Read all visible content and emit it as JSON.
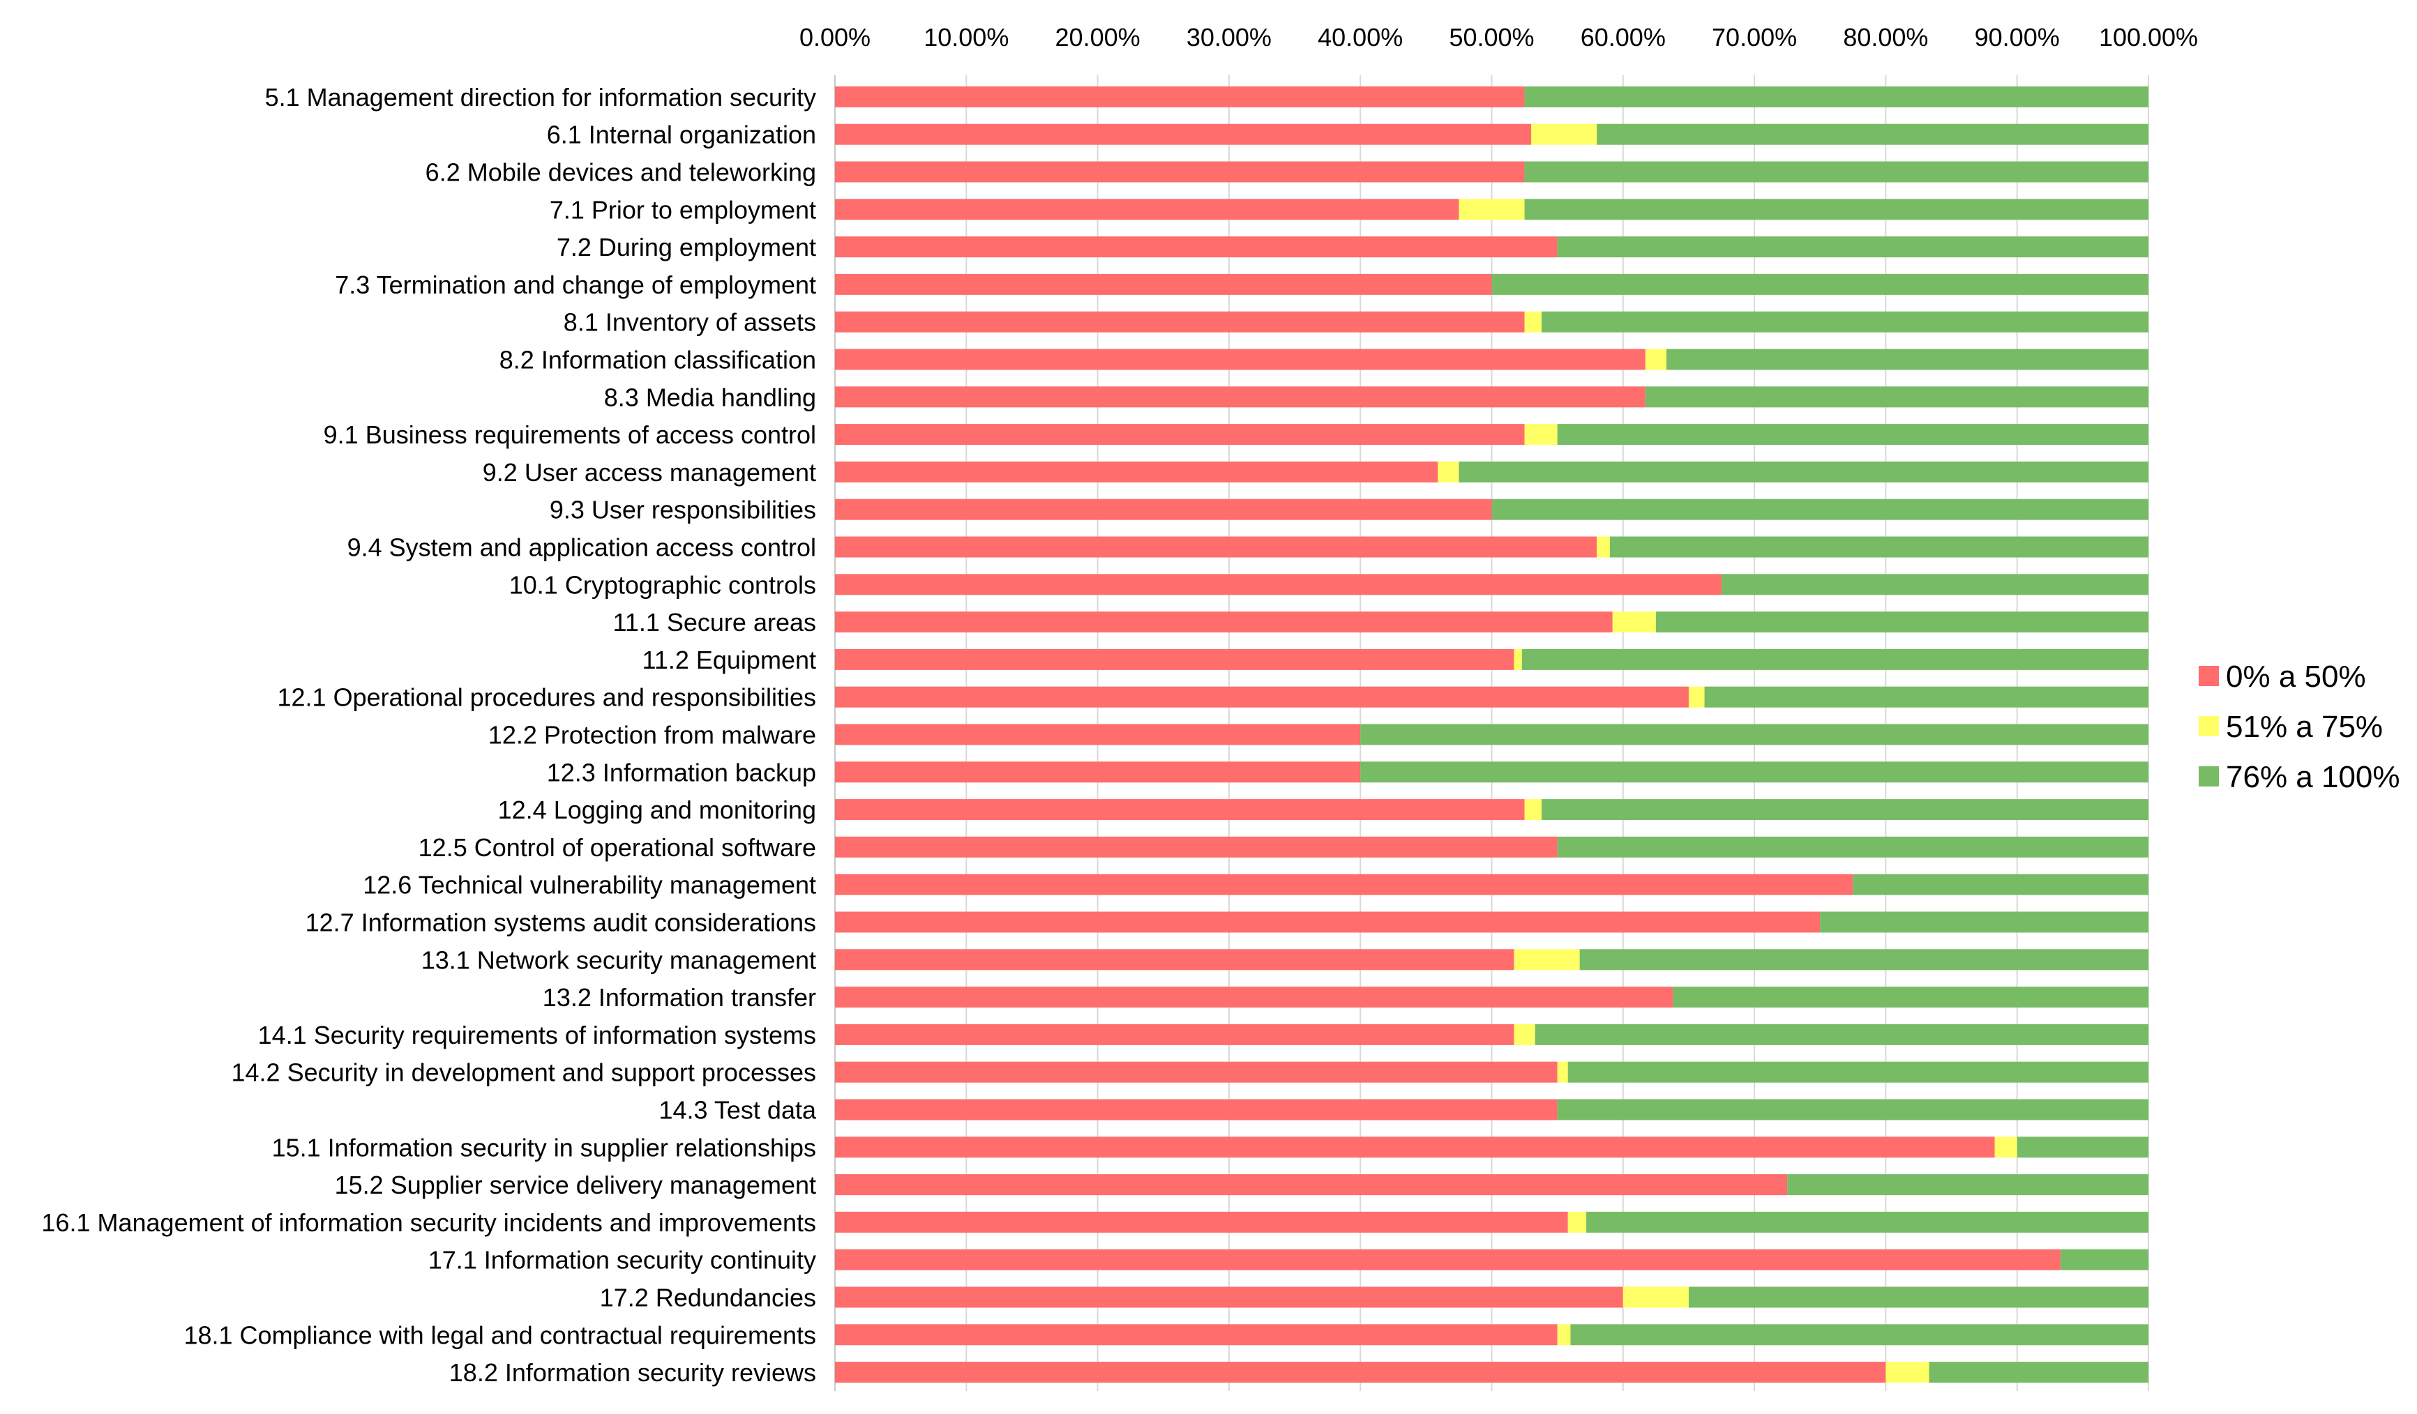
{
  "chart_data": {
    "type": "bar",
    "orientation": "horizontal",
    "stacked": "percent",
    "title": "",
    "xlabel": "",
    "ylabel": "",
    "xlim": [
      0,
      100
    ],
    "x_ticks": [
      "0.00%",
      "10.00%",
      "20.00%",
      "30.00%",
      "40.00%",
      "50.00%",
      "60.00%",
      "70.00%",
      "80.00%",
      "90.00%",
      "100.00%"
    ],
    "x_axis_position": "top",
    "grid": true,
    "legend_position": "right",
    "categories": [
      "5.1 Management direction for information security",
      "6.1 Internal organization",
      "6.2 Mobile devices and teleworking",
      "7.1 Prior to employment",
      "7.2 During employment",
      "7.3 Termination and change of employment",
      "8.1 Inventory of assets",
      "8.2 Information classification",
      "8.3 Media handling",
      "9.1 Business requirements of access control",
      "9.2 User access management",
      "9.3 User responsibilities",
      "9.4 System and application access control",
      "10.1 Cryptographic controls",
      "11.1 Secure areas",
      "11.2 Equipment",
      "12.1 Operational procedures and responsibilities",
      "12.2 Protection from malware",
      "12.3 Information backup",
      "12.4 Logging and monitoring",
      "12.5 Control of operational software",
      "12.6 Technical vulnerability management",
      "12.7 Information systems audit considerations",
      "13.1 Network security management",
      "13.2 Information transfer",
      "14.1 Security requirements of information systems",
      "14.2 Security in development and support processes",
      "14.3 Test data",
      "15.1 Information security in supplier relationships",
      "15.2 Supplier service delivery management",
      "16.1 Management of information security incidents and improvements",
      "17.1 Information security continuity",
      "17.2 Redundancies",
      "18.1 Compliance with legal and contractual requirements",
      "18.2 Information security reviews"
    ],
    "series": [
      {
        "name": "0% a 50%",
        "color": "#ff6d6d",
        "values": [
          52.5,
          53.0,
          52.5,
          47.5,
          55.0,
          50.0,
          52.5,
          61.7,
          61.7,
          52.5,
          45.9,
          50.0,
          58.0,
          67.5,
          59.2,
          51.7,
          65.0,
          40.0,
          40.0,
          52.5,
          55.0,
          77.5,
          75.0,
          51.7,
          63.8,
          51.7,
          55.0,
          55.0,
          88.3,
          72.5,
          55.8,
          93.3,
          60.0,
          55.0,
          80.0
        ]
      },
      {
        "name": "51% a 75%",
        "color": "#ffff66",
        "values": [
          0.0,
          5.0,
          0.0,
          5.0,
          0.0,
          0.0,
          1.3,
          1.6,
          0.0,
          2.5,
          1.6,
          0.0,
          1.0,
          0.0,
          3.3,
          0.6,
          1.2,
          0.0,
          0.0,
          1.3,
          0.0,
          0.0,
          0.0,
          5.0,
          0.0,
          1.6,
          0.8,
          0.0,
          1.7,
          0.0,
          1.4,
          0.0,
          5.0,
          1.0,
          3.3
        ]
      },
      {
        "name": "76% a 100%",
        "color": "#77bc65",
        "values": [
          47.5,
          42.0,
          47.5,
          47.5,
          45.0,
          50.0,
          46.2,
          36.7,
          38.3,
          45.0,
          52.5,
          50.0,
          41.0,
          32.5,
          37.5,
          47.7,
          33.8,
          60.0,
          60.0,
          46.2,
          45.0,
          22.5,
          25.0,
          43.3,
          36.2,
          46.7,
          44.2,
          45.0,
          10.0,
          27.5,
          42.8,
          6.7,
          35.0,
          44.0,
          16.7
        ]
      }
    ]
  }
}
